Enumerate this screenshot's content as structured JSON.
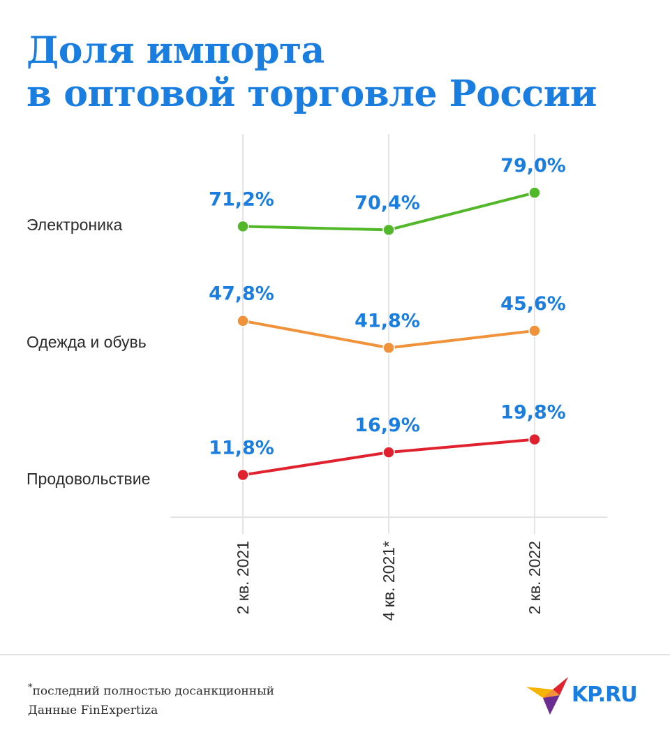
{
  "title": {
    "line1": "Доля импорта",
    "line2": "в оптовой торговле России"
  },
  "chart_data": {
    "type": "line",
    "categories": [
      "2 кв. 2021",
      "4 кв. 2021*",
      "2 кв. 2022"
    ],
    "series": [
      {
        "name": "Электроника",
        "values": [
          71.2,
          70.4,
          79.0
        ],
        "labels": [
          "71,2%",
          "70,4%",
          "79,0%"
        ],
        "color": "#52b82a"
      },
      {
        "name": "Одежда и обувь",
        "values": [
          47.8,
          41.8,
          45.6
        ],
        "labels": [
          "47,8%",
          "41,8%",
          "45,6%"
        ],
        "color": "#f0923a"
      },
      {
        "name": "Продовольствие",
        "values": [
          11.8,
          16.9,
          19.8
        ],
        "labels": [
          "11,8%",
          "16,9%",
          "19,8%"
        ],
        "color": "#e0222e"
      }
    ],
    "value_color": "#1a7ee0",
    "grid": "vertical",
    "legend": "left"
  },
  "footer": {
    "note_mark": "*",
    "note": "последний полностью досанкционный",
    "source": "Данные FinExpertiza"
  },
  "logo": {
    "text": "KP.RU",
    "icon": "bird-logo-icon"
  }
}
